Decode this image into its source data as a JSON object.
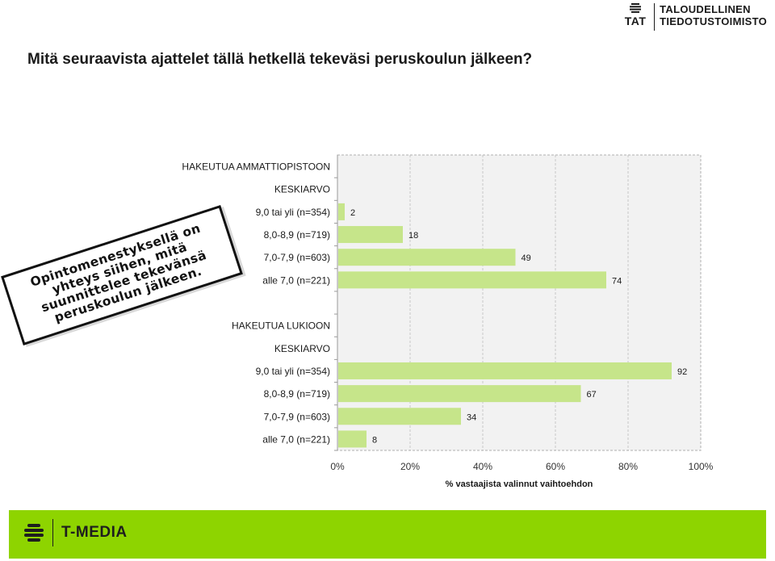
{
  "header": {
    "logo_abbr": "TAT",
    "logo_line1": "TALOUDELLINEN",
    "logo_line2": "TIEDOTUSTOIMISTO"
  },
  "title": "Mitä seuraavista ajattelet tällä hetkellä tekeväsi peruskoulun jälkeen?",
  "callout": "Opintomenestyksellä on\nyhteys siihen, mitä\nsuunnittelee tekevänsä\nperuskoulun jälkeen.",
  "footer": {
    "brand": "T-MEDIA"
  },
  "colors": {
    "bar": "#c6e58a",
    "footer": "#8ed400",
    "grid": "#c8c8c8",
    "plot_bg": "#f2f2f2"
  },
  "chart_data": {
    "type": "bar",
    "orientation": "horizontal",
    "xlabel": "% vastaajista  valinnut vaihtoehdon",
    "xlim": [
      0,
      100
    ],
    "xticks": [
      "0%",
      "20%",
      "40%",
      "60%",
      "80%",
      "100%"
    ],
    "grid": true,
    "rows": [
      {
        "label": "HAKEUTUA AMMATTIOPISTOON",
        "value": null
      },
      {
        "label": "KESKIARVO",
        "value": null
      },
      {
        "label": "9,0 tai yli (n=354)",
        "value": 2
      },
      {
        "label": "8,0-8,9 (n=719)",
        "value": 18
      },
      {
        "label": "7,0-7,9 (n=603)",
        "value": 49
      },
      {
        "label": "alle 7,0 (n=221)",
        "value": 74
      },
      {
        "label": "",
        "value": null
      },
      {
        "label": "HAKEUTUA LUKIOON",
        "value": null
      },
      {
        "label": "KESKIARVO",
        "value": null
      },
      {
        "label": "9,0 tai yli (n=354)",
        "value": 92
      },
      {
        "label": "8,0-8,9 (n=719)",
        "value": 67
      },
      {
        "label": "7,0-7,9 (n=603)",
        "value": 34
      },
      {
        "label": "alle 7,0 (n=221)",
        "value": 8
      }
    ]
  }
}
